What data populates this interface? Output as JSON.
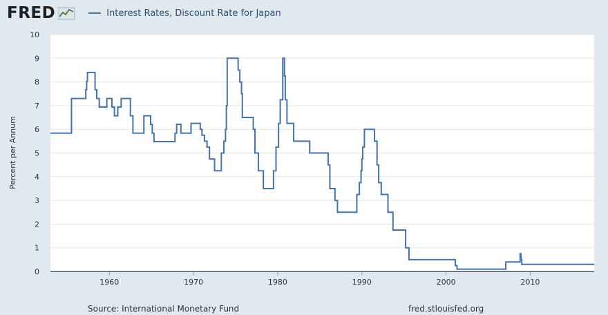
{
  "header": {
    "logo_text": "FRED",
    "logo_icon": "line-chart-icon",
    "series_label": "Interest Rates, Discount Rate for Japan"
  },
  "footer": {
    "source": "Source: International Monetary Fund",
    "site": "fred.stlouisfed.org"
  },
  "colors": {
    "line": "#4572a7",
    "background": "#e1e9f0",
    "plot": "#ffffff",
    "grid": "#e6e6e6"
  },
  "chart_data": {
    "type": "line",
    "title": "",
    "xlabel": "",
    "ylabel": "Percent per Annum",
    "xlim": [
      1953,
      2017.6
    ],
    "ylim": [
      0,
      10
    ],
    "x_ticks": [
      1960,
      1970,
      1980,
      1990,
      2000,
      2010
    ],
    "x_tick_labels": [
      "1960",
      "1970",
      "1980",
      "1990",
      "2000",
      "2010"
    ],
    "y_ticks": [
      0,
      1,
      2,
      3,
      4,
      5,
      6,
      7,
      8,
      9,
      10
    ],
    "y_tick_labels": [
      "0",
      "1",
      "2",
      "3",
      "4",
      "5",
      "6",
      "7",
      "8",
      "9",
      "10"
    ],
    "grid": "horizontal",
    "legend": "top-left",
    "series": [
      {
        "name": "Interest Rates, Discount Rate for Japan",
        "step": true,
        "x": [
          1953.0,
          1955.5,
          1957.2,
          1957.3,
          1957.4,
          1958.3,
          1958.5,
          1958.8,
          1959.0,
          1959.7,
          1960.3,
          1960.6,
          1961.0,
          1961.4,
          1961.8,
          1962.5,
          1962.8,
          1963.4,
          1964.1,
          1964.9,
          1965.1,
          1965.3,
          1967.8,
          1968.0,
          1968.5,
          1969.7,
          1970.8,
          1971.0,
          1971.3,
          1971.6,
          1971.9,
          1972.5,
          1973.3,
          1973.6,
          1973.8,
          1973.9,
          1974.0,
          1975.3,
          1975.5,
          1975.7,
          1975.8,
          1977.1,
          1977.3,
          1977.7,
          1978.3,
          1979.3,
          1979.5,
          1979.8,
          1980.1,
          1980.3,
          1980.6,
          1980.8,
          1980.9,
          1981.1,
          1981.9,
          1983.8,
          1986.0,
          1986.2,
          1986.8,
          1987.1,
          1989.4,
          1989.7,
          1989.9,
          1990.0,
          1990.1,
          1990.3,
          1990.6,
          1991.5,
          1991.8,
          1992.0,
          1992.3,
          1992.5,
          1993.1,
          1993.7,
          1995.2,
          1995.6,
          2001.1,
          2001.3,
          2001.7,
          2006.5,
          2007.1,
          2008.8,
          2008.9,
          2009.0,
          2017.6
        ],
        "values": [
          5.84,
          7.3,
          7.67,
          8.03,
          8.4,
          7.67,
          7.3,
          6.94,
          6.94,
          7.3,
          6.94,
          6.57,
          6.94,
          7.3,
          7.3,
          6.57,
          5.84,
          5.84,
          6.57,
          6.21,
          5.84,
          5.48,
          5.84,
          6.21,
          5.84,
          6.25,
          6.0,
          5.75,
          5.5,
          5.25,
          4.75,
          4.25,
          5.0,
          5.5,
          6.0,
          7.0,
          9.0,
          8.5,
          8.0,
          7.5,
          6.5,
          6.0,
          5.0,
          4.25,
          3.5,
          3.5,
          4.25,
          5.25,
          6.25,
          7.25,
          9.0,
          8.25,
          7.25,
          6.25,
          5.5,
          5.0,
          4.5,
          3.5,
          3.0,
          2.5,
          3.25,
          3.75,
          4.25,
          4.75,
          5.25,
          6.0,
          6.0,
          5.5,
          4.5,
          3.75,
          3.25,
          3.25,
          2.5,
          1.75,
          1.0,
          0.5,
          0.25,
          0.1,
          0.1,
          0.1,
          0.4,
          0.75,
          0.5,
          0.3,
          0.3
        ]
      }
    ]
  }
}
